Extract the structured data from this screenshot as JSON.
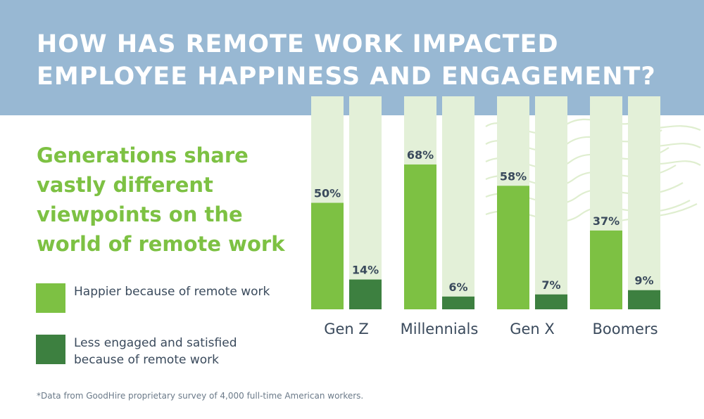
{
  "title_lines": [
    "HOW HAS REMOTE WORK IMPACTED",
    "EMPLOYEE HAPPINESS AND ENGAGEMENT?"
  ],
  "subtitle": "Generations share vastly different viewpoints on the world of remote work",
  "legend": [
    {
      "label": "Happier because of remote work",
      "color": "#7dc143"
    },
    {
      "label": "Less engaged and satisfied because of remote work",
      "color": "#3d8040"
    }
  ],
  "footnote": "*Data from GoodHire proprietary survey of 4,000 full-time American workers.",
  "colors": {
    "header": "#98b8d3",
    "track": "#e3f0d8",
    "happier": "#7dc143",
    "less_engaged": "#3d8040",
    "value_label": "#3a4a5c"
  },
  "chart_data": {
    "type": "bar",
    "categories": [
      "Gen Z",
      "Millennials",
      "Gen X",
      "Boomers"
    ],
    "series": [
      {
        "name": "Happier because of remote work",
        "values": [
          50,
          68,
          58,
          37
        ],
        "labels": [
          "50%",
          "68%",
          "58%",
          "37%"
        ]
      },
      {
        "name": "Less engaged and satisfied because of remote work",
        "values": [
          14,
          6,
          7,
          9
        ],
        "labels": [
          "14%",
          "6%",
          "7%",
          "9%"
        ]
      }
    ],
    "ylim": [
      0,
      100
    ],
    "grid": false,
    "legend_position": "left"
  }
}
